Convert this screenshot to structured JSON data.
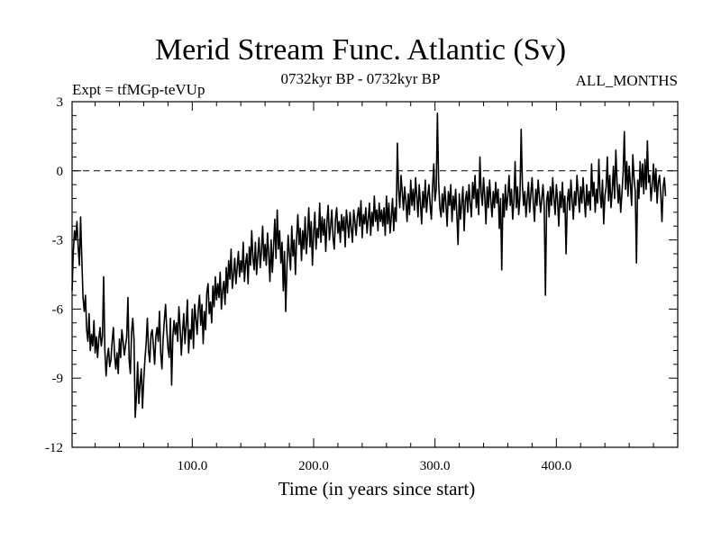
{
  "chart_data": {
    "type": "line",
    "title": "Merid Stream Func. Atlantic (Sv)",
    "subtitle_left": "Expt = tfMGp-teVUp",
    "subtitle_center": "0732kyr BP - 0732kyr BP",
    "subtitle_right": "ALL_MONTHS",
    "xlabel": "Time (in years since start)",
    "ylabel": "",
    "xlim": [
      1,
      500
    ],
    "ylim": [
      -12,
      3
    ],
    "x_ticks": [
      100,
      200,
      300,
      400
    ],
    "x_tick_labels": [
      "100.0",
      "200.0",
      "300.0",
      "400.0"
    ],
    "y_ticks": [
      3,
      0,
      -3,
      -6,
      -9,
      -12
    ],
    "y_tick_labels": [
      "3",
      "0",
      "-3",
      "-6",
      "-9",
      "-12"
    ],
    "reference_line": {
      "y": 0,
      "style": "dashed"
    },
    "series": [
      {
        "name": "Merid Stream Func. Atlantic",
        "x_start": 1,
        "x_step": 1,
        "values": [
          -5.2,
          -3.5,
          -2.6,
          -3.0,
          -2.2,
          -3.3,
          -4.1,
          -2.0,
          -3.8,
          -5.5,
          -6.1,
          -5.4,
          -6.9,
          -7.4,
          -6.2,
          -7.8,
          -7.1,
          -7.6,
          -6.5,
          -7.9,
          -7.2,
          -8.1,
          -7.3,
          -6.8,
          -7.6,
          -7.2,
          -4.6,
          -7.8,
          -8.9,
          -8.1,
          -7.7,
          -8.5,
          -8.2,
          -7.4,
          -6.8,
          -8.0,
          -8.6,
          -7.9,
          -8.8,
          -7.3,
          -8.1,
          -6.9,
          -7.4,
          -8.0,
          -7.6,
          -7.2,
          -5.5,
          -8.2,
          -8.8,
          -7.0,
          -6.4,
          -7.3,
          -10.7,
          -9.8,
          -8.3,
          -10.1,
          -9.2,
          -8.6,
          -10.3,
          -9.1,
          -8.2,
          -7.5,
          -6.4,
          -7.8,
          -8.3,
          -7.1,
          -6.9,
          -7.6,
          -8.4,
          -7.2,
          -6.8,
          -7.4,
          -6.1,
          -7.9,
          -8.6,
          -7.3,
          -6.5,
          -5.8,
          -6.9,
          -7.7,
          -8.1,
          -6.4,
          -9.3,
          -7.2,
          -6.5,
          -7.1,
          -6.6,
          -7.4,
          -5.9,
          -6.8,
          -8.0,
          -7.0,
          -6.2,
          -7.5,
          -6.7,
          -5.6,
          -7.9,
          -6.9,
          -7.3,
          -6.0,
          -7.7,
          -5.8,
          -6.4,
          -7.1,
          -6.0,
          -5.4,
          -6.7,
          -5.8,
          -7.5,
          -6.1,
          -6.9,
          -5.3,
          -4.9,
          -6.2,
          -5.7,
          -6.6,
          -5.0,
          -5.9,
          -4.6,
          -5.6,
          -4.9,
          -5.5,
          -4.4,
          -6.0,
          -5.2,
          -4.8,
          -5.8,
          -4.2,
          -5.3,
          -3.9,
          -4.7,
          -3.4,
          -5.1,
          -4.5,
          -3.8,
          -4.9,
          -4.2,
          -3.5,
          -4.6,
          -3.9,
          -4.4,
          -3.1,
          -4.8,
          -4.0,
          -3.6,
          -4.9,
          -3.3,
          -4.1,
          -2.6,
          -3.8,
          -4.3,
          -3.1,
          -4.5,
          -3.7,
          -2.9,
          -4.2,
          -3.5,
          -2.4,
          -3.9,
          -3.2,
          -4.1,
          -2.7,
          -3.6,
          -4.8,
          -3.0,
          -4.4,
          -3.3,
          -2.1,
          -3.8,
          -1.7,
          -3.4,
          -2.6,
          -4.0,
          -3.1,
          -5.2,
          -3.5,
          -6.1,
          -4.2,
          -2.8,
          -3.6,
          -4.3,
          -2.4,
          -3.7,
          -3.0,
          -4.5,
          -2.9,
          -1.9,
          -3.2,
          -2.5,
          -3.9,
          -2.6,
          -3.4,
          -2.0,
          -3.6,
          -2.8,
          -1.6,
          -3.3,
          -2.2,
          -4.1,
          -2.7,
          -1.8,
          -3.4,
          -2.5,
          -2.9,
          -1.4,
          -3.1,
          -2.0,
          -2.8,
          -2.1,
          -3.5,
          -2.2,
          -1.5,
          -3.0,
          -2.4,
          -1.7,
          -2.9,
          -3.4,
          -2.1,
          -1.6,
          -2.7,
          -2.2,
          -3.1,
          -1.9,
          -2.6,
          -2.0,
          -3.3,
          -1.7,
          -2.3,
          -2.9,
          -1.8,
          -2.5,
          -3.1,
          -1.7,
          -2.2,
          -2.8,
          -2.0,
          -1.6,
          -2.4,
          -1.3,
          -2.9,
          -1.9,
          -2.3,
          -1.6,
          -2.7,
          -2.1,
          -1.4,
          -2.8,
          -1.8,
          -2.4,
          -1.1,
          -2.2,
          -1.7,
          -2.6,
          -1.4,
          -2.2,
          -1.7,
          -2.4,
          -1.6,
          -2.8,
          -1.1,
          -2.3,
          -1.4,
          -2.7,
          -2.0,
          -1.2,
          -2.6,
          -1.6,
          -2.2,
          1.2,
          -0.8,
          -1.6,
          -0.2,
          -0.9,
          -1.7,
          -0.7,
          -1.3,
          -2.2,
          -1.0,
          -1.9,
          -0.4,
          -1.5,
          -0.8,
          -1.7,
          -0.3,
          -1.1,
          -2.0,
          -0.6,
          -1.4,
          -2.3,
          -0.9,
          -1.6,
          -0.4,
          -1.8,
          -1.1,
          -0.6,
          -1.5,
          -2.1,
          -0.7,
          0.3,
          -1.3,
          -0.8,
          2.5,
          -0.5,
          -1.6,
          -2.0,
          -1.0,
          -1.8,
          -0.7,
          -1.4,
          -2.4,
          -0.9,
          -1.5,
          -0.6,
          -2.2,
          -1.1,
          -1.7,
          -0.8,
          -1.9,
          -3.2,
          -1.0,
          -2.1,
          -1.4,
          -0.7,
          -2.6,
          -1.3,
          -0.9,
          -1.8,
          -0.6,
          -1.4,
          -2.0,
          -0.5,
          -1.2,
          -0.2,
          -1.6,
          -0.8,
          -1.9,
          0.6,
          -0.9,
          -1.5,
          -0.3,
          -1.1,
          -2.3,
          -0.7,
          -1.6,
          -0.4,
          -1.3,
          -2.0,
          -0.9,
          -1.6,
          -0.5,
          -1.4,
          -0.8,
          -2.5,
          -1.2,
          -4.3,
          -1.0,
          -2.0,
          -0.6,
          -1.7,
          -1.1,
          -0.2,
          -1.5,
          -0.8,
          -2.1,
          -1.3,
          0.4,
          -1.6,
          -0.7,
          -1.9,
          -1.1,
          1.8,
          -0.6,
          -1.5,
          -0.9,
          -2.0,
          -1.2,
          -0.5,
          -1.8,
          -1.0,
          -0.3,
          -1.4,
          -2.2,
          -0.8,
          -1.5,
          -0.4,
          -1.1,
          -1.8,
          -1.2,
          -0.6,
          -1.6,
          -5.4,
          -1.3,
          -0.9,
          -2.0,
          -0.7,
          -1.5,
          -0.3,
          -1.2,
          -1.9,
          -0.6,
          -1.3,
          -2.4,
          -0.9,
          -1.6,
          -0.5,
          -1.8,
          -1.1,
          -3.6,
          -1.4,
          -0.8,
          -1.7,
          -0.4,
          -1.3,
          -2.1,
          -0.9,
          -1.5,
          -0.2,
          -1.0,
          -1.8,
          -0.7,
          -1.4,
          -0.3,
          -1.2,
          -2.0,
          -0.6,
          -1.5,
          -0.9,
          -1.7,
          0.3,
          -1.1,
          -0.5,
          -1.8,
          -0.8,
          -1.4,
          0.5,
          -1.0,
          -1.6,
          -0.4,
          -2.3,
          -1.1,
          -0.7,
          0.6,
          -1.3,
          -0.2,
          -1.6,
          -0.9,
          0.2,
          -1.2,
          0.9,
          -0.5,
          -1.4,
          -0.6,
          -1.8,
          -1.0,
          -0.1,
          1.7,
          -0.8,
          0.4,
          -1.1,
          0.2,
          -0.6,
          -1.5,
          0.7,
          -0.3,
          -0.9,
          -4.0,
          -0.4,
          -1.2,
          0.4,
          -0.7,
          0.3,
          -1.0,
          0.5,
          -0.8,
          1.3,
          -0.5,
          -0.2,
          -1.3,
          -0.6,
          0.3,
          -0.9,
          0.1,
          -1.4,
          -0.5,
          -0.2,
          -1.0,
          -2.2,
          -0.7,
          -0.3,
          -1.1
        ]
      }
    ]
  }
}
